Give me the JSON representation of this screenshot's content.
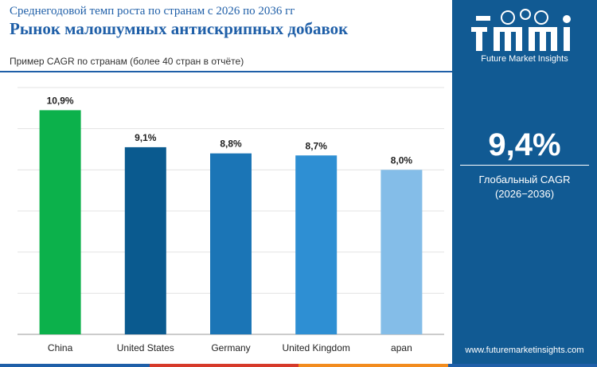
{
  "header": {
    "subtitle": "Среднегодовой темп роста по странам с 2026 по 2036 гг",
    "title": "Рынок малошумных антискрипных добавок",
    "note": "Пример CAGR по странам (более 40 стран в отчёте)"
  },
  "chart_data": {
    "type": "bar",
    "categories": [
      "China",
      "United States",
      "Germany",
      "United Kingdom",
      "apan"
    ],
    "values": [
      10.9,
      9.1,
      8.8,
      8.7,
      8.0
    ],
    "value_labels": [
      "10,9%",
      "9,1%",
      "8,8%",
      "8,7%",
      "8,0%"
    ],
    "bar_colors": [
      "#0cb14b",
      "#0a5a8f",
      "#1b75b6",
      "#2e8fd3",
      "#84bde8"
    ],
    "ylim": [
      0,
      12
    ],
    "grid": true,
    "title": "",
    "xlabel": "",
    "ylabel": ""
  },
  "panel": {
    "logo_text": "Future Market Insights",
    "cagr_value": "9,4%",
    "cagr_label": "Глобальный CAGR",
    "cagr_period": "(2026−2036)",
    "website": "www.futuremarketinsights.com"
  },
  "colors": {
    "panel_bg": "#115a93",
    "title": "#1f5fa8",
    "footer": [
      "#1f5fa8",
      "#d63a2a",
      "#f28c1e",
      "#1f5fa8"
    ]
  }
}
